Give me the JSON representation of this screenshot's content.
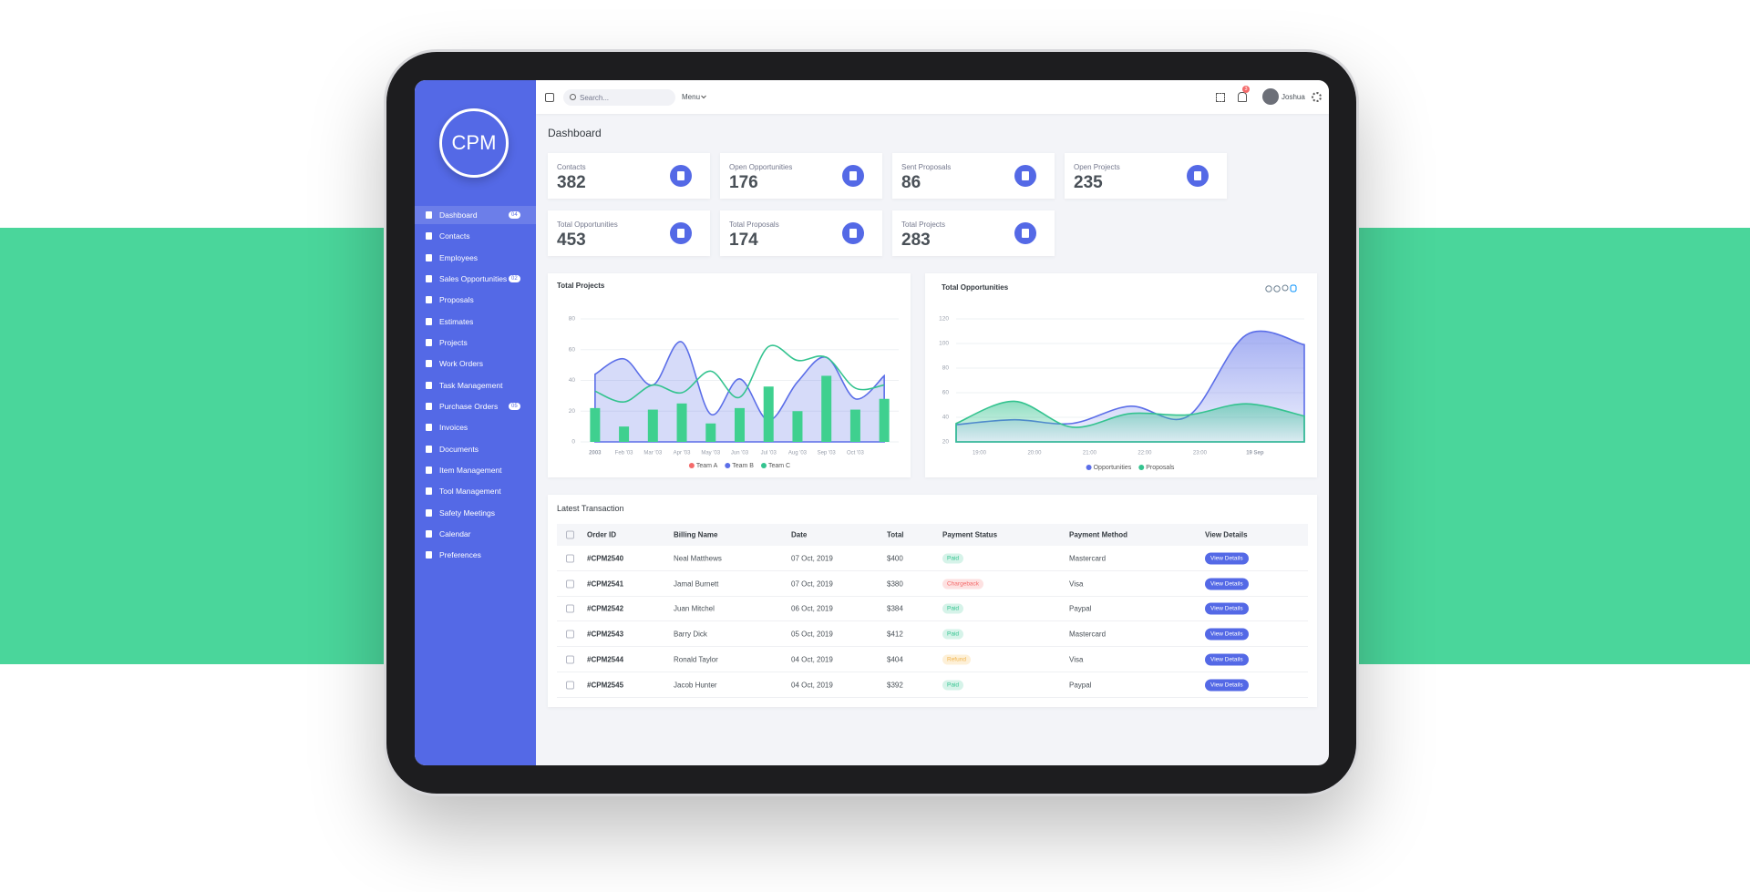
{
  "sidebar": {
    "logo": "CPM",
    "items": [
      {
        "label": "Dashboard",
        "badge": "04"
      },
      {
        "label": "Contacts"
      },
      {
        "label": "Employees"
      },
      {
        "label": "Sales Opportunities",
        "badge": "02"
      },
      {
        "label": "Proposals"
      },
      {
        "label": "Estimates"
      },
      {
        "label": "Projects"
      },
      {
        "label": "Work Orders"
      },
      {
        "label": "Task Management"
      },
      {
        "label": "Purchase Orders",
        "badge": "05"
      },
      {
        "label": "Invoices"
      },
      {
        "label": "Documents"
      },
      {
        "label": "Item Management"
      },
      {
        "label": "Tool Management"
      },
      {
        "label": "Safety Meetings"
      },
      {
        "label": "Calendar"
      },
      {
        "label": "Preferences"
      }
    ]
  },
  "topbar": {
    "search": "Search...",
    "menu": "Menu",
    "notifications": "3",
    "user": "Joshua"
  },
  "page_title": "Dashboard",
  "stats": [
    {
      "label": "Contacts",
      "value": "382"
    },
    {
      "label": "Open Opportunities",
      "value": "176"
    },
    {
      "label": "Sent Proposals",
      "value": "86"
    },
    {
      "label": "Open Projects",
      "value": "235"
    },
    {
      "label": "Total Opportunities",
      "value": "453"
    },
    {
      "label": "Total Proposals",
      "value": "174"
    },
    {
      "label": "Total Projects",
      "value": "283"
    }
  ],
  "chart_data": [
    {
      "type": "combo",
      "title": "Total Projects",
      "categories": [
        "2003",
        "Feb '03",
        "Mar '03",
        "Apr '03",
        "May '03",
        "Jun '03",
        "Jul '03",
        "Aug '03",
        "Sep '03",
        "Oct '03",
        null
      ],
      "series": [
        {
          "name": "Team A",
          "type": "bar",
          "color": "#3fd08f",
          "legend_color": "#f46a6a",
          "values": [
            22,
            10,
            21,
            25,
            12,
            22,
            36,
            20,
            43,
            21,
            28
          ]
        },
        {
          "name": "Team B",
          "type": "area",
          "color": "#5b6ee8",
          "legend_color": "#5b6ee8",
          "values": [
            44,
            54,
            37,
            65,
            18,
            41,
            14,
            39,
            55,
            28,
            43
          ]
        },
        {
          "name": "Team C",
          "type": "line",
          "color": "#34c38f",
          "legend_color": "#34c38f",
          "values": [
            33,
            26,
            37,
            32,
            46,
            29,
            62,
            53,
            55,
            35,
            37
          ]
        }
      ],
      "ylim": [
        0,
        80
      ],
      "yticks": [
        0,
        20,
        40,
        60,
        80
      ],
      "grid": true
    },
    {
      "type": "area",
      "title": "Total Opportunities",
      "x": [
        0,
        1,
        2,
        3,
        4,
        5,
        6
      ],
      "xlim": [
        0,
        6
      ],
      "xticks": [
        {
          "value": 0.4,
          "label": "19:00"
        },
        {
          "value": 1.35,
          "label": "20:00"
        },
        {
          "value": 2.3,
          "label": "21:00"
        },
        {
          "value": 3.25,
          "label": "22:00"
        },
        {
          "value": 4.2,
          "label": "23:00"
        },
        {
          "value": 5.15,
          "label": "19 Sep"
        }
      ],
      "series": [
        {
          "name": "Opportunities",
          "color": "#5b6ee8",
          "values": [
            34,
            38,
            35,
            49,
            41,
            107,
            99
          ]
        },
        {
          "name": "Proposals",
          "color": "#34c38f",
          "values": [
            35,
            53,
            32,
            43,
            42,
            51,
            41
          ]
        }
      ],
      "ylim": [
        20,
        120
      ],
      "yticks": [
        20,
        40,
        60,
        80,
        100,
        120
      ],
      "grid": true
    }
  ],
  "table": {
    "title": "Latest Transaction",
    "columns": [
      "Order ID",
      "Billing Name",
      "Date",
      "Total",
      "Payment Status",
      "Payment Method",
      "View Details"
    ],
    "rows": [
      [
        "#CPM2540",
        "Neal Matthews",
        "07 Oct, 2019",
        "$400",
        "Paid",
        "Mastercard",
        "View Details"
      ],
      [
        "#CPM2541",
        "Jamal Burnett",
        "07 Oct, 2019",
        "$380",
        "Chargeback",
        "Visa",
        "View Details"
      ],
      [
        "#CPM2542",
        "Juan Mitchel",
        "06 Oct, 2019",
        "$384",
        "Paid",
        "Paypal",
        "View Details"
      ],
      [
        "#CPM2543",
        "Barry Dick",
        "05 Oct, 2019",
        "$412",
        "Paid",
        "Mastercard",
        "View Details"
      ],
      [
        "#CPM2544",
        "Ronald Taylor",
        "04 Oct, 2019",
        "$404",
        "Refund",
        "Visa",
        "View Details"
      ],
      [
        "#CPM2545",
        "Jacob Hunter",
        "04 Oct, 2019",
        "$392",
        "Paid",
        "Paypal",
        "View Details"
      ]
    ]
  }
}
